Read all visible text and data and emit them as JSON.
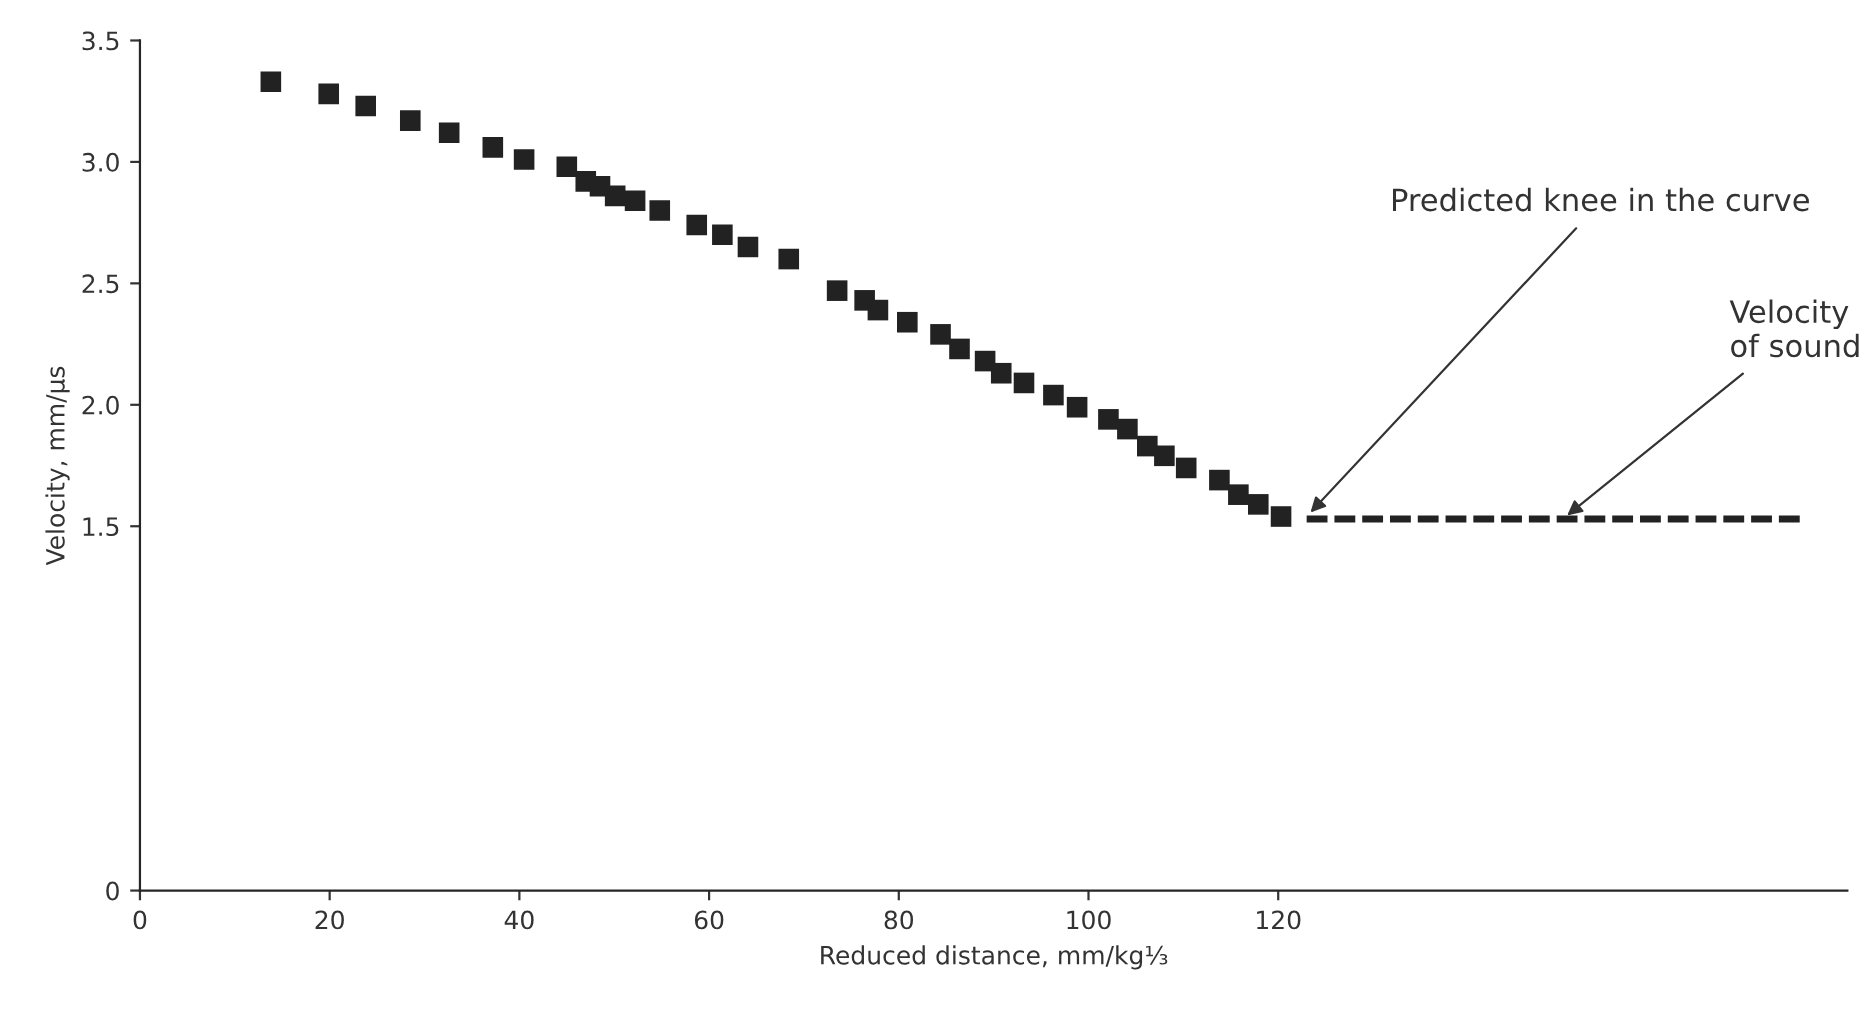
{
  "chart_data": {
    "type": "scatter",
    "xlabel": "Reduced distance, mm/kg⅓",
    "ylabel": "Velocity, mm/µs",
    "xlim": [
      0,
      180
    ],
    "xticks": [
      0,
      20,
      40,
      60,
      80,
      100,
      120
    ],
    "ylim": [
      0,
      3.5
    ],
    "yticks": [
      0,
      {
        "value": 1.5,
        "label": "1.5"
      },
      {
        "value": 2.0,
        "label": "2.0"
      },
      {
        "value": 2.5,
        "label": "2.5"
      },
      {
        "value": 3.0,
        "label": "3.0"
      },
      {
        "value": 3.5,
        "label": "3.5"
      }
    ],
    "marker": "square",
    "series": [
      {
        "color": "#222222",
        "x": [
          13.8,
          19.9,
          23.8,
          28.5,
          32.6,
          37.2,
          40.5,
          45.0,
          47.0,
          48.5,
          50.1,
          52.2,
          54.8,
          58.7,
          61.4,
          64.1,
          68.4,
          73.5,
          76.4,
          77.8,
          80.9,
          84.4,
          86.4,
          89.1,
          90.8,
          93.2,
          96.3,
          98.8,
          102.1,
          104.1,
          106.2,
          108.0,
          110.3,
          113.8,
          115.8,
          117.9,
          120.3
        ],
        "values": [
          3.33,
          3.28,
          3.23,
          3.17,
          3.12,
          3.06,
          3.01,
          2.98,
          2.92,
          2.9,
          2.86,
          2.84,
          2.8,
          2.74,
          2.7,
          2.65,
          2.6,
          2.47,
          2.43,
          2.39,
          2.34,
          2.29,
          2.23,
          2.18,
          2.13,
          2.09,
          2.04,
          1.99,
          1.94,
          1.9,
          1.83,
          1.79,
          1.74,
          1.69,
          1.63,
          1.59,
          1.54
        ]
      },
      {
        "type": "line",
        "line_style": "dashed",
        "marker": "none",
        "color": "#222222",
        "x": [
          123,
          175
        ],
        "values": [
          1.53,
          1.53
        ]
      }
    ],
    "annotations": [
      {
        "text": "Predicted knee in the curve",
        "x": 123,
        "y": 1.54
      },
      {
        "text": "Velocity of sound",
        "x": 150,
        "y": 1.53
      }
    ]
  }
}
